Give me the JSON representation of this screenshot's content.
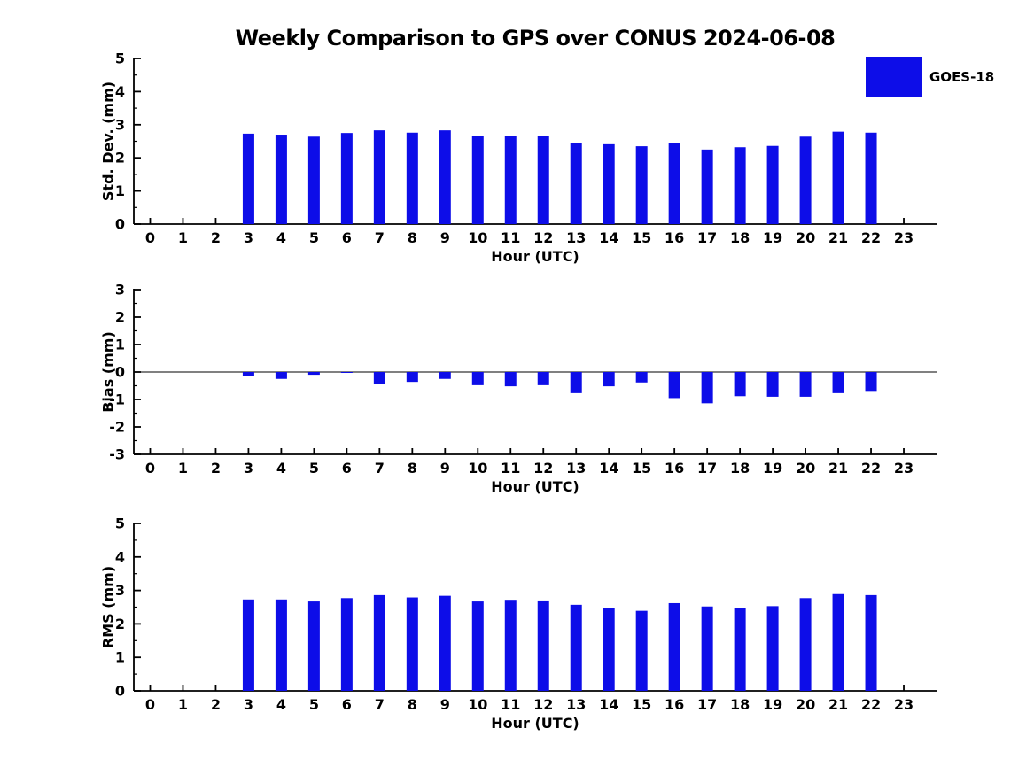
{
  "title": "Weekly Comparison to GPS over CONUS 2024-06-08",
  "legend": {
    "label": "GOES-18",
    "swatch_color": "#0d0de8"
  },
  "axes_color": "#000000",
  "chart_data": [
    {
      "type": "bar",
      "name": "std-dev",
      "ylabel": "Std. Dev. (mm)",
      "xlabel": "Hour (UTC)",
      "ylim": [
        0,
        5
      ],
      "yticks": [
        0,
        1,
        2,
        3,
        4,
        5
      ],
      "y_minor_step": 0.5,
      "grid": false,
      "zero_line": false,
      "categories": [
        0,
        1,
        2,
        3,
        4,
        5,
        6,
        7,
        8,
        9,
        10,
        11,
        12,
        13,
        14,
        15,
        16,
        17,
        18,
        19,
        20,
        21,
        22,
        23
      ],
      "x_tick_labels": [
        "0",
        "1",
        "2",
        "3",
        "4",
        "5",
        "6",
        "7",
        "8",
        "9",
        "10",
        "11",
        "12",
        "13",
        "14",
        "15",
        "16",
        "17",
        "18",
        "19",
        "20",
        "21",
        "22",
        "23"
      ],
      "series": [
        {
          "name": "GOES-18",
          "color": "#0d0de8",
          "values": [
            null,
            null,
            null,
            2.73,
            2.7,
            2.64,
            2.75,
            2.83,
            2.76,
            2.83,
            2.65,
            2.67,
            2.65,
            2.46,
            2.41,
            2.35,
            2.44,
            2.25,
            2.32,
            2.36,
            2.64,
            2.79,
            2.76,
            null
          ]
        }
      ]
    },
    {
      "type": "bar",
      "name": "bias",
      "ylabel": "Bias (mm)",
      "xlabel": "Hour (UTC)",
      "ylim": [
        -3,
        3
      ],
      "yticks": [
        -3,
        -2,
        -1,
        0,
        1,
        2,
        3
      ],
      "y_minor_step": 0.5,
      "grid": false,
      "zero_line": true,
      "categories": [
        0,
        1,
        2,
        3,
        4,
        5,
        6,
        7,
        8,
        9,
        10,
        11,
        12,
        13,
        14,
        15,
        16,
        17,
        18,
        19,
        20,
        21,
        22,
        23
      ],
      "x_tick_labels": [
        "0",
        "1",
        "2",
        "3",
        "4",
        "5",
        "6",
        "7",
        "8",
        "9",
        "10",
        "11",
        "12",
        "13",
        "14",
        "15",
        "16",
        "17",
        "18",
        "19",
        "20",
        "21",
        "22",
        "23"
      ],
      "series": [
        {
          "name": "GOES-18",
          "color": "#0d0de8",
          "values": [
            null,
            null,
            null,
            -0.15,
            -0.25,
            -0.1,
            -0.03,
            -0.45,
            -0.36,
            -0.25,
            -0.48,
            -0.52,
            -0.48,
            -0.77,
            -0.52,
            -0.38,
            -0.95,
            -1.14,
            -0.88,
            -0.9,
            -0.9,
            -0.77,
            -0.72,
            null
          ]
        }
      ]
    },
    {
      "type": "bar",
      "name": "rms",
      "ylabel": "RMS (mm)",
      "xlabel": "Hour (UTC)",
      "ylim": [
        0,
        5
      ],
      "yticks": [
        0,
        1,
        2,
        3,
        4,
        5
      ],
      "y_minor_step": 0.5,
      "grid": false,
      "zero_line": false,
      "categories": [
        0,
        1,
        2,
        3,
        4,
        5,
        6,
        7,
        8,
        9,
        10,
        11,
        12,
        13,
        14,
        15,
        16,
        17,
        18,
        19,
        20,
        21,
        22,
        23
      ],
      "x_tick_labels": [
        "0",
        "1",
        "2",
        "3",
        "4",
        "5",
        "6",
        "7",
        "8",
        "9",
        "10",
        "11",
        "12",
        "13",
        "14",
        "15",
        "16",
        "17",
        "18",
        "19",
        "20",
        "21",
        "22",
        "23"
      ],
      "series": [
        {
          "name": "GOES-18",
          "color": "#0d0de8",
          "values": [
            null,
            null,
            null,
            2.73,
            2.73,
            2.67,
            2.77,
            2.86,
            2.79,
            2.84,
            2.67,
            2.72,
            2.7,
            2.57,
            2.46,
            2.39,
            2.62,
            2.52,
            2.46,
            2.53,
            2.77,
            2.89,
            2.86,
            null
          ]
        }
      ]
    }
  ]
}
